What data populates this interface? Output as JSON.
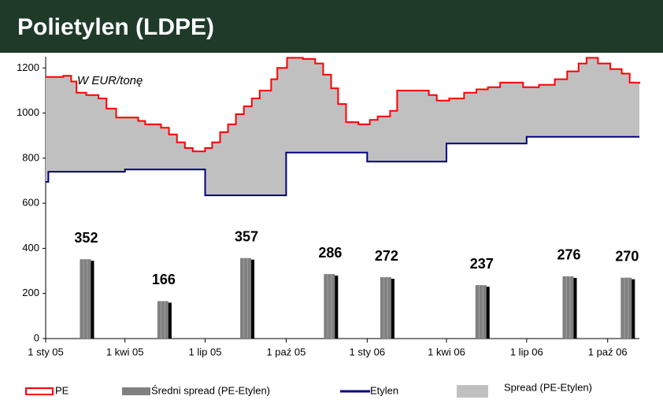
{
  "chart_data": {
    "type": "step_line",
    "title": "Polietylen (LDPE)",
    "annotation": "W EUR/tonę",
    "ylim": [
      0,
      1250
    ],
    "yticks": [
      0,
      200,
      400,
      600,
      800,
      1000,
      1200
    ],
    "xlim": [
      "2005-01-01",
      "2006-11-06"
    ],
    "xticks": [
      {
        "value": "2005-01-01",
        "label": "1 sty 05"
      },
      {
        "value": "2005-04-01",
        "label": "1 kwi 05"
      },
      {
        "value": "2005-07-01",
        "label": "1 lip 05"
      },
      {
        "value": "2005-10-01",
        "label": "1 paź 05"
      },
      {
        "value": "2006-01-01",
        "label": "1 sty 06"
      },
      {
        "value": "2006-04-01",
        "label": "1 kwi 06"
      },
      {
        "value": "2006-07-01",
        "label": "1 lip 06"
      },
      {
        "value": "2006-10-01",
        "label": "1 paź 06"
      }
    ],
    "series": [
      {
        "name": "PE",
        "type": "step_line",
        "color": "#ff0000",
        "x": [
          "2005-01-01",
          "2005-01-21",
          "2005-01-30",
          "2005-02-05",
          "2005-02-16",
          "2005-03-02",
          "2005-03-11",
          "2005-03-22",
          "2005-04-16",
          "2005-04-24",
          "2005-05-12",
          "2005-05-21",
          "2005-05-30",
          "2005-06-08",
          "2005-06-17",
          "2005-07-01",
          "2005-07-09",
          "2005-07-18",
          "2005-07-27",
          "2005-08-05",
          "2005-08-14",
          "2005-08-23",
          "2005-09-01",
          "2005-09-14",
          "2005-09-21",
          "2005-10-02",
          "2005-10-20",
          "2005-11-03",
          "2005-11-12",
          "2005-11-21",
          "2005-11-29",
          "2005-12-08",
          "2005-12-22",
          "2006-01-04",
          "2006-01-13",
          "2006-01-27",
          "2006-02-04",
          "2006-03-12",
          "2006-03-21",
          "2006-04-04",
          "2006-04-21",
          "2006-05-05",
          "2006-05-18",
          "2006-06-01",
          "2006-06-27",
          "2006-07-15",
          "2006-08-02",
          "2006-08-16",
          "2006-08-29",
          "2006-09-07",
          "2006-09-20",
          "2006-10-04",
          "2006-10-17",
          "2006-10-26",
          "2006-11-06"
        ],
        "values": [
          1160,
          1165,
          1140,
          1090,
          1080,
          1065,
          1020,
          980,
          965,
          950,
          935,
          905,
          870,
          845,
          830,
          845,
          870,
          915,
          950,
          995,
          1030,
          1065,
          1100,
          1150,
          1200,
          1245,
          1240,
          1220,
          1170,
          1110,
          1040,
          960,
          950,
          970,
          985,
          1010,
          1100,
          1080,
          1055,
          1065,
          1090,
          1105,
          1115,
          1135,
          1115,
          1125,
          1150,
          1185,
          1220,
          1245,
          1220,
          1195,
          1175,
          1135,
          1130
        ]
      },
      {
        "name": "Średni spread (PE-Etylen)",
        "type": "bar",
        "color": "#808080",
        "x": [
          "2005-02-16",
          "2005-05-15",
          "2005-08-17",
          "2005-11-20",
          "2006-01-23",
          "2006-05-11",
          "2006-08-18",
          "2006-10-23"
        ],
        "values": [
          352,
          166,
          357,
          286,
          272,
          237,
          276,
          270
        ]
      },
      {
        "name": "Etylen",
        "type": "step_line",
        "color": "#000080",
        "x": [
          "2005-01-01",
          "2005-01-04",
          "2005-04-01",
          "2005-07-01",
          "2005-10-01",
          "2006-01-01",
          "2006-04-01",
          "2006-07-01",
          "2006-11-06"
        ],
        "values": [
          695,
          740,
          750,
          635,
          825,
          785,
          865,
          895,
          895
        ]
      },
      {
        "name": "Spread (PE-Etylen)",
        "type": "area_between",
        "color": "#c0c0c0",
        "between": [
          "PE",
          "Etylen"
        ]
      }
    ]
  }
}
